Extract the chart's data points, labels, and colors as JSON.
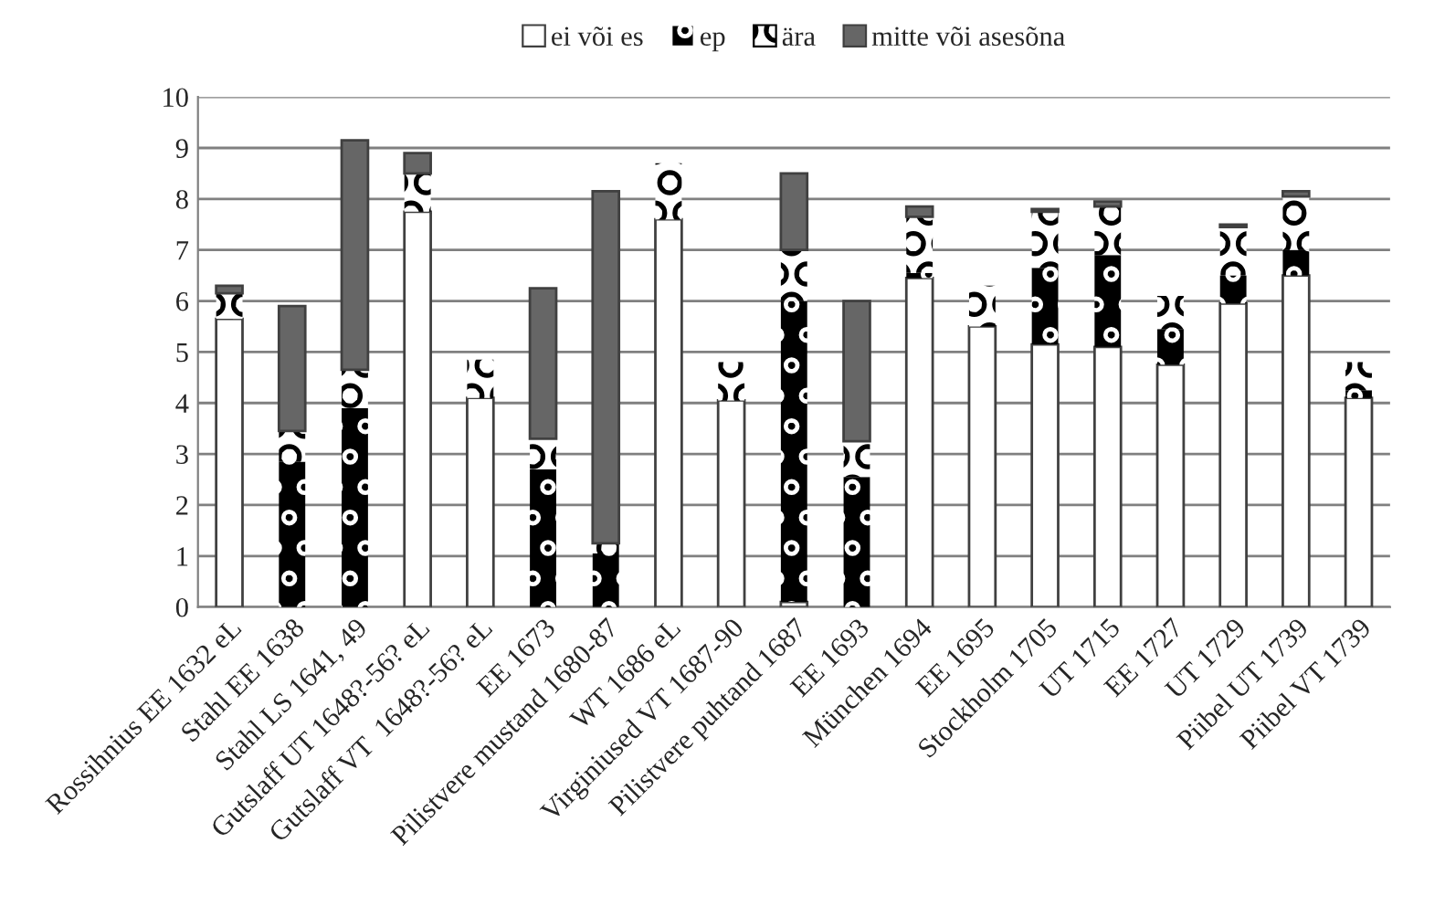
{
  "chart_data": {
    "type": "bar",
    "stacked": true,
    "categories": [
      "Rossihnius EE 1632 eL",
      "Stahl EE 1638",
      "Stahl LS 1641, 49",
      "Gutslaff UT 1648?-56? eL",
      "Gutslaff VT  1648?-56? eL",
      "EE 1673",
      "Pilistvere mustand 1680-87",
      "WT 1686 eL",
      "Virginiused VT 1687-90",
      "Pilistvere puhtand 1687",
      "EE 1693",
      "München 1694",
      "EE 1695",
      "Stockholm 1705",
      "UT 1715",
      "EE 1727",
      "UT 1729",
      "Piibel UT 1739",
      "Piibel VT 1739"
    ],
    "series": [
      {
        "name": "ei või es",
        "color": "#ffffff",
        "values": [
          5.65,
          0,
          0,
          7.75,
          4.1,
          0,
          0,
          7.6,
          4.05,
          0.1,
          0,
          6.45,
          5.5,
          5.15,
          5.1,
          4.75,
          5.95,
          6.5,
          4.1
        ]
      },
      {
        "name": "ep",
        "color": "#000000",
        "values": [
          0,
          2.85,
          3.9,
          0,
          0,
          2.7,
          1.05,
          0,
          0,
          5.9,
          2.55,
          0.1,
          0,
          1.5,
          1.8,
          0.7,
          0.55,
          0.5,
          0.15
        ]
      },
      {
        "name": "ära",
        "color": "#ffffff",
        "values": [
          0.5,
          0.6,
          0.75,
          0.75,
          0.75,
          0.6,
          0.2,
          1.1,
          0.75,
          1.0,
          0.7,
          1.1,
          0.8,
          1.1,
          0.95,
          0.65,
          0.95,
          1.05,
          0.55
        ]
      },
      {
        "name": "mitte või asesõna",
        "color": "#666666",
        "values": [
          0.15,
          2.45,
          4.5,
          0.4,
          0,
          2.95,
          6.9,
          0,
          0,
          1.5,
          2.75,
          0.2,
          0,
          0.05,
          0.1,
          0,
          0.05,
          0.1,
          0
        ]
      }
    ],
    "ylim": [
      0,
      10
    ],
    "yticks": [
      0,
      1,
      2,
      3,
      4,
      5,
      6,
      7,
      8,
      9,
      10
    ],
    "grid": "y",
    "legend": "top"
  }
}
